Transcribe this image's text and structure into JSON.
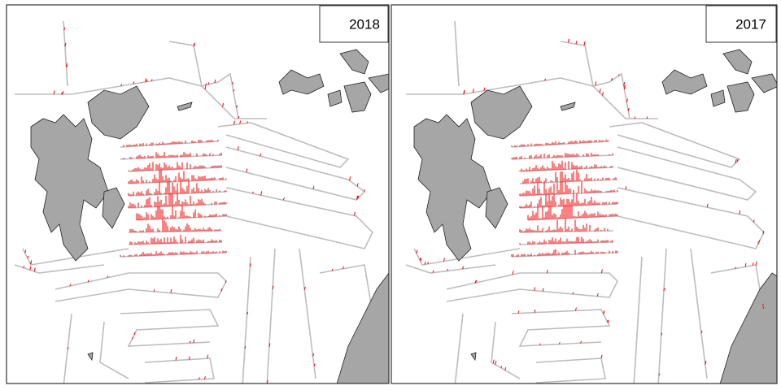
{
  "panels": [
    {
      "label": "2018"
    },
    {
      "label": "2017"
    }
  ]
}
